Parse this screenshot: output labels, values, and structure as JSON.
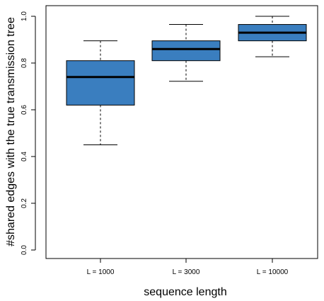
{
  "chart_data": {
    "type": "boxplot",
    "xlabel": "sequence length",
    "ylabel": "#shared edges with the true transmission tree",
    "ylim": [
      0.0,
      1.0
    ],
    "yticks": [
      "0.0",
      "0.2",
      "0.4",
      "0.6",
      "0.8",
      "1.0"
    ],
    "categories": [
      "L = 1000",
      "L = 3000",
      "L = 10000"
    ],
    "boxes": [
      {
        "category": "L = 1000",
        "min": 0.45,
        "q1": 0.62,
        "median": 0.74,
        "q3": 0.81,
        "max": 0.895
      },
      {
        "category": "L = 3000",
        "min": 0.722,
        "q1": 0.81,
        "median": 0.86,
        "q3": 0.895,
        "max": 0.965
      },
      {
        "category": "L = 10000",
        "min": 0.827,
        "q1": 0.895,
        "median": 0.93,
        "q3": 0.965,
        "max": 1.0
      }
    ],
    "box_color": "#3a7ebf",
    "grid": false,
    "legend": false
  }
}
